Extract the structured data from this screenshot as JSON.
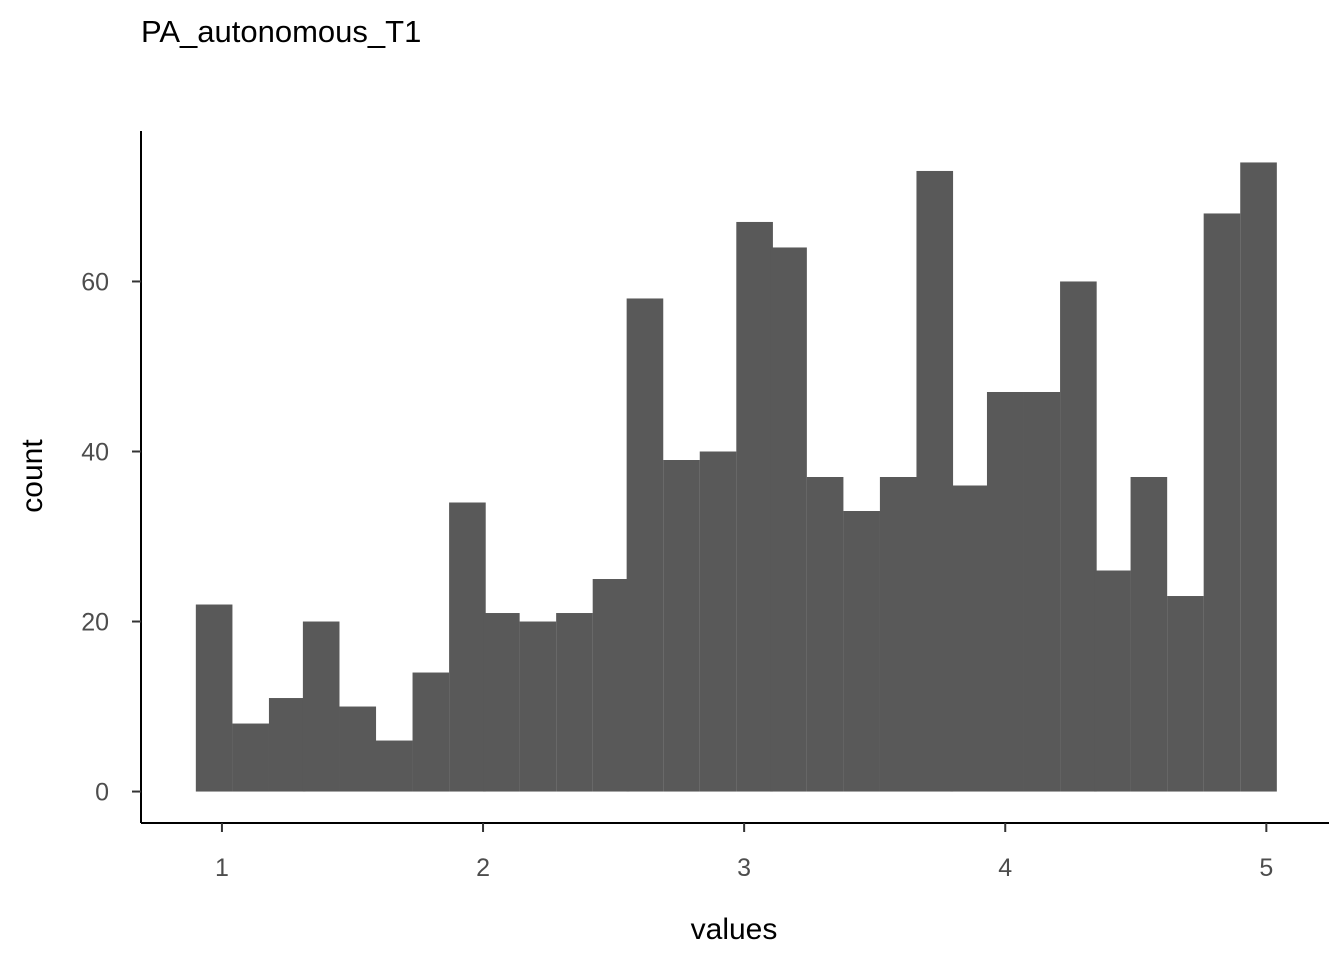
{
  "chart_data": {
    "type": "bar",
    "title": "PA_autonomous_T1",
    "xlabel": "values",
    "ylabel": "count",
    "bar_color": "#595959",
    "bin_width": 0.1379,
    "bins": [
      {
        "x0": 0.9,
        "count": 22
      },
      {
        "x0": 1.04,
        "count": 8
      },
      {
        "x0": 1.18,
        "count": 11
      },
      {
        "x0": 1.31,
        "count": 20
      },
      {
        "x0": 1.45,
        "count": 10
      },
      {
        "x0": 1.59,
        "count": 6
      },
      {
        "x0": 1.73,
        "count": 14
      },
      {
        "x0": 1.87,
        "count": 34
      },
      {
        "x0": 2.0,
        "count": 21
      },
      {
        "x0": 2.14,
        "count": 20
      },
      {
        "x0": 2.28,
        "count": 21
      },
      {
        "x0": 2.42,
        "count": 25
      },
      {
        "x0": 2.55,
        "count": 58
      },
      {
        "x0": 2.69,
        "count": 39
      },
      {
        "x0": 2.83,
        "count": 40
      },
      {
        "x0": 2.97,
        "count": 67
      },
      {
        "x0": 3.1,
        "count": 64
      },
      {
        "x0": 3.24,
        "count": 37
      },
      {
        "x0": 3.38,
        "count": 33
      },
      {
        "x0": 3.52,
        "count": 37
      },
      {
        "x0": 3.66,
        "count": 73
      },
      {
        "x0": 3.79,
        "count": 36
      },
      {
        "x0": 3.93,
        "count": 47
      },
      {
        "x0": 4.07,
        "count": 47
      },
      {
        "x0": 4.21,
        "count": 60
      },
      {
        "x0": 4.34,
        "count": 26
      },
      {
        "x0": 4.48,
        "count": 37
      },
      {
        "x0": 4.62,
        "count": 23
      },
      {
        "x0": 4.76,
        "count": 68
      },
      {
        "x0": 4.9,
        "count": 74
      }
    ],
    "xlim": [
      0.69,
      5.24
    ],
    "ylim": [
      -3.7,
      77.7
    ],
    "x_ticks": [
      1,
      2,
      3,
      4,
      5
    ],
    "x_tick_labels": [
      "1",
      "2",
      "3",
      "4",
      "5"
    ],
    "y_ticks": [
      0,
      20,
      40,
      60
    ],
    "y_tick_labels": [
      "0",
      "20",
      "40",
      "60"
    ],
    "grid": false,
    "legend": "none"
  }
}
